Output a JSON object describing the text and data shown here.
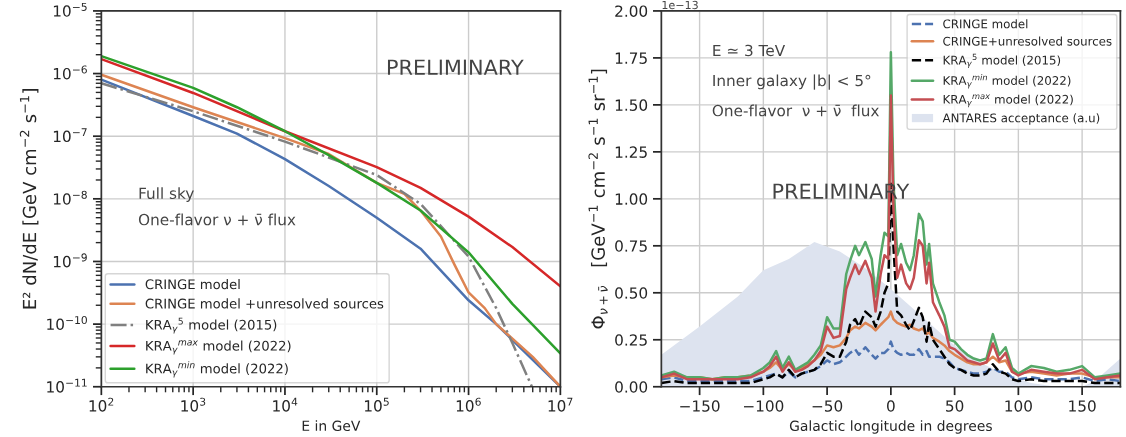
{
  "chart_data": [
    {
      "type": "line",
      "xlabel": "E in GeV",
      "ylabel": "E² dN/dE [GeV cm$^{−2}$ s$^{−1}$]",
      "log": "xy",
      "grid": true,
      "legend": "bottom left",
      "xlim": [
        100,
        10000000
      ],
      "ylim": [
        1e-11,
        1e-05
      ],
      "xticks": [
        {
          "value": 100,
          "label": "10$^{2}$"
        },
        {
          "value": 1000,
          "label": "10$^{3}$"
        },
        {
          "value": 10000,
          "label": "10$^{4}$"
        },
        {
          "value": 100000,
          "label": "10$^{5}$"
        },
        {
          "value": 1000000,
          "label": "10$^{6}$"
        },
        {
          "value": 10000000,
          "label": "10$^{7}$"
        }
      ],
      "yticks": [
        {
          "value": 1e-11,
          "label": "10$^{−11}$"
        },
        {
          "value": 1e-10,
          "label": "10$^{−10}$"
        },
        {
          "value": 1e-09,
          "label": "10$^{−9}$"
        },
        {
          "value": 1e-08,
          "label": "10$^{−8}$"
        },
        {
          "value": 1e-07,
          "label": "10$^{−7}$"
        },
        {
          "value": 1e-06,
          "label": "10$^{−6}$"
        },
        {
          "value": 1e-05,
          "label": "10$^{−5}$"
        }
      ],
      "annotations": [
        "PRELIMINARY",
        "Full sky",
        "One-flavor ν + ν̄ flux"
      ],
      "series": [
        {
          "name": "CRINGE model",
          "color": "#4c72b0",
          "x": [
            100,
            1000,
            3000,
            10000,
            30000,
            100000,
            300000,
            1000000,
            2000000,
            10000000
          ],
          "values": [
            8e-07,
            2.1e-07,
            1.1e-07,
            4.3e-08,
            1.6e-08,
            5e-09,
            1.6e-09,
            2.4e-10,
            1e-10,
            1e-11
          ]
        },
        {
          "name": "CRINGE model +unresolved sources",
          "color": "#dd8452",
          "x": [
            100,
            1000,
            10000,
            30000,
            100000,
            200000,
            300000,
            500000,
            700000,
            1000000,
            1500000,
            2000000,
            5000000,
            10000000
          ],
          "values": [
            9.6e-07,
            2.9e-07,
            9.3e-08,
            5.2e-08,
            1.8e-08,
            1.2e-08,
            6.5e-09,
            2.5e-09,
            9e-10,
            3.2e-10,
            1.8e-10,
            1e-10,
            3e-11,
            1e-11
          ]
        },
        {
          "name": "KRA$_{γ}$$^{5}$ model (2015)",
          "color": "#808080",
          "line_style": "dashdot",
          "x": [
            100,
            1000,
            10000,
            100000,
            300000,
            1000000,
            2000000,
            3000000,
            4900000
          ],
          "values": [
            7e-07,
            2.5e-07,
            8.2e-08,
            2.4e-08,
            8.3e-09,
            1.2e-09,
            1.8e-10,
            5e-11,
            1e-11
          ]
        },
        {
          "name": "KRA$_{γ}$$^{max}$ model (2022)",
          "color": "#d62728",
          "x": [
            100,
            1000,
            10000,
            100000,
            300000,
            1000000,
            3000000,
            10000000
          ],
          "values": [
            1.7e-06,
            4.9e-07,
            1.2e-07,
            3.2e-08,
            1.5e-08,
            5.2e-09,
            1.7e-09,
            4e-10
          ]
        },
        {
          "name": "KRA$_{γ}$$^{min}$ model (2022)",
          "color": "#2ca02c",
          "x": [
            100,
            1000,
            3000,
            10000,
            30000,
            100000,
            300000,
            1000000,
            3000000,
            10000000
          ],
          "values": [
            1.9e-06,
            5.9e-07,
            2.9e-07,
            1.2e-07,
            5e-08,
            1.8e-08,
            6.5e-09,
            1.4e-09,
            2.1e-10,
            3.4e-11
          ]
        }
      ]
    },
    {
      "type": "line",
      "xlabel": "Galactic longitude in degrees",
      "ylabel": "Φ$_{ν+ν̄}$   [GeV$^{−1}$ cm$^{−2}$ s$^{−1}$ sr$^{−1}$]",
      "grid": true,
      "legend": "top right",
      "xlim": [
        -180,
        180
      ],
      "ylim": [
        0,
        2.0
      ],
      "xticks": [
        {
          "value": -150,
          "label": "−150"
        },
        {
          "value": -100,
          "label": "−100"
        },
        {
          "value": -50,
          "label": "−50"
        },
        0,
        50,
        100,
        150
      ],
      "yticks": [
        {
          "value": 0,
          "label": "0.00"
        },
        {
          "value": 0.25,
          "label": "0.25"
        },
        {
          "value": 0.5,
          "label": "0.50"
        },
        {
          "value": 0.75,
          "label": "0.75"
        },
        {
          "value": 1.0,
          "label": "1.00"
        },
        {
          "value": 1.25,
          "label": "1.25"
        },
        {
          "value": 1.5,
          "label": "1.50"
        },
        {
          "value": 1.75,
          "label": "1.75"
        },
        {
          "value": 2.0,
          "label": "2.00"
        }
      ],
      "annotations": [
        "1e−13",
        "E ≃ 3 TeV",
        "Inner galaxy |b| < 5°",
        "One-flavor  ν + ν̄  flux",
        "PRELIMINARY"
      ],
      "x": [
        -180,
        -170,
        -160,
        -150,
        -140,
        -130,
        -120,
        -110,
        -100,
        -95,
        -90,
        -85,
        -80,
        -75,
        -70,
        -65,
        -60,
        -55,
        -50,
        -45,
        -40,
        -35,
        -32,
        -28,
        -25,
        -20,
        -15,
        -12,
        -8,
        -5,
        -2,
        0,
        2,
        5,
        8,
        12,
        15,
        18,
        22,
        25,
        28,
        30,
        33,
        38,
        42,
        46,
        50,
        55,
        60,
        65,
        70,
        75,
        80,
        85,
        90,
        95,
        100,
        110,
        120,
        130,
        140,
        150,
        160,
        170,
        180
      ],
      "series": [
        {
          "name": "CRINGE model",
          "color": "#4c72b0",
          "line_style": "dashed",
          "values": [
            0.04,
            0.05,
            0.03,
            0.03,
            0.03,
            0.03,
            0.03,
            0.03,
            0.05,
            0.06,
            0.07,
            0.05,
            0.08,
            0.05,
            0.07,
            0.08,
            0.09,
            0.11,
            0.14,
            0.12,
            0.13,
            0.16,
            0.18,
            0.2,
            0.17,
            0.21,
            0.17,
            0.15,
            0.18,
            0.18,
            0.2,
            0.24,
            0.2,
            0.18,
            0.17,
            0.18,
            0.17,
            0.17,
            0.2,
            0.17,
            0.19,
            0.16,
            0.16,
            0.16,
            0.15,
            0.13,
            0.1,
            0.09,
            0.08,
            0.07,
            0.07,
            0.08,
            0.1,
            0.08,
            0.08,
            0.05,
            0.04,
            0.05,
            0.04,
            0.04,
            0.04,
            0.05,
            0.03,
            0.04,
            0.03
          ]
        },
        {
          "name": "CRINGE+unresolved sources",
          "color": "#dd8452",
          "values": [
            0.05,
            0.06,
            0.05,
            0.05,
            0.04,
            0.05,
            0.05,
            0.06,
            0.08,
            0.1,
            0.13,
            0.09,
            0.12,
            0.09,
            0.1,
            0.12,
            0.14,
            0.17,
            0.22,
            0.21,
            0.22,
            0.26,
            0.3,
            0.32,
            0.31,
            0.34,
            0.32,
            0.3,
            0.33,
            0.35,
            0.37,
            0.4,
            0.36,
            0.34,
            0.33,
            0.32,
            0.33,
            0.31,
            0.3,
            0.31,
            0.28,
            0.29,
            0.26,
            0.24,
            0.22,
            0.19,
            0.17,
            0.15,
            0.13,
            0.12,
            0.12,
            0.13,
            0.16,
            0.13,
            0.14,
            0.08,
            0.07,
            0.08,
            0.07,
            0.06,
            0.07,
            0.07,
            0.05,
            0.05,
            0.05
          ]
        },
        {
          "name": "KRA$_{γ}$$^{5}$ model (2015)",
          "color": "#000000",
          "line_style": "dashed",
          "values": [
            0.02,
            0.03,
            0.02,
            0.02,
            0.02,
            0.02,
            0.02,
            0.02,
            0.04,
            0.05,
            0.07,
            0.05,
            0.09,
            0.05,
            0.07,
            0.08,
            0.09,
            0.12,
            0.18,
            0.16,
            0.16,
            0.24,
            0.33,
            0.36,
            0.32,
            0.4,
            0.37,
            0.32,
            0.4,
            0.5,
            0.55,
            1.08,
            0.75,
            0.4,
            0.38,
            0.33,
            0.3,
            0.35,
            0.42,
            0.37,
            0.24,
            0.34,
            0.25,
            0.2,
            0.16,
            0.12,
            0.1,
            0.09,
            0.07,
            0.06,
            0.06,
            0.07,
            0.12,
            0.08,
            0.07,
            0.04,
            0.03,
            0.04,
            0.03,
            0.03,
            0.03,
            0.03,
            0.02,
            0.02,
            0.02
          ]
        },
        {
          "name": "KRA$_{γ}$$^{min}$ model (2022)",
          "color": "#55a868",
          "values": [
            0.06,
            0.08,
            0.05,
            0.05,
            0.04,
            0.05,
            0.05,
            0.06,
            0.1,
            0.13,
            0.19,
            0.1,
            0.16,
            0.09,
            0.11,
            0.13,
            0.17,
            0.22,
            0.37,
            0.31,
            0.31,
            0.6,
            0.67,
            0.75,
            0.7,
            0.77,
            0.68,
            0.48,
            0.7,
            0.82,
            0.8,
            1.78,
            1.1,
            0.7,
            0.76,
            0.66,
            0.62,
            0.7,
            0.92,
            0.88,
            0.65,
            0.76,
            0.55,
            0.45,
            0.38,
            0.25,
            0.24,
            0.2,
            0.17,
            0.15,
            0.14,
            0.15,
            0.28,
            0.17,
            0.21,
            0.1,
            0.07,
            0.11,
            0.1,
            0.08,
            0.09,
            0.11,
            0.05,
            0.06,
            0.07
          ]
        },
        {
          "name": "KRA$_{γ}$$^{max}$ model (2022)",
          "color": "#c44e52",
          "values": [
            0.05,
            0.07,
            0.04,
            0.04,
            0.04,
            0.04,
            0.04,
            0.05,
            0.08,
            0.11,
            0.16,
            0.08,
            0.13,
            0.08,
            0.09,
            0.11,
            0.14,
            0.19,
            0.32,
            0.26,
            0.27,
            0.52,
            0.58,
            0.65,
            0.6,
            0.67,
            0.58,
            0.4,
            0.6,
            0.7,
            0.68,
            1.55,
            0.95,
            0.58,
            0.65,
            0.55,
            0.52,
            0.58,
            0.78,
            0.75,
            0.55,
            0.66,
            0.45,
            0.38,
            0.32,
            0.21,
            0.2,
            0.17,
            0.14,
            0.13,
            0.12,
            0.13,
            0.23,
            0.14,
            0.18,
            0.08,
            0.06,
            0.09,
            0.08,
            0.07,
            0.07,
            0.09,
            0.04,
            0.05,
            0.06
          ]
        },
        {
          "name": "ANTARES acceptance (a.u)",
          "type": "area",
          "color": "#dde3ef",
          "x": [
            -180,
            -150,
            -120,
            -100,
            -80,
            -60,
            -40,
            -20,
            0,
            20,
            40,
            50,
            60,
            70,
            90,
            110,
            130,
            150,
            160,
            170,
            180
          ],
          "values": [
            0.17,
            0.32,
            0.48,
            0.62,
            0.68,
            0.77,
            0.72,
            0.63,
            0.52,
            0.4,
            0.28,
            0.22,
            0.17,
            0.13,
            0.06,
            0.02,
            0,
            0,
            0.03,
            0.09,
            0.15
          ]
        }
      ]
    }
  ]
}
